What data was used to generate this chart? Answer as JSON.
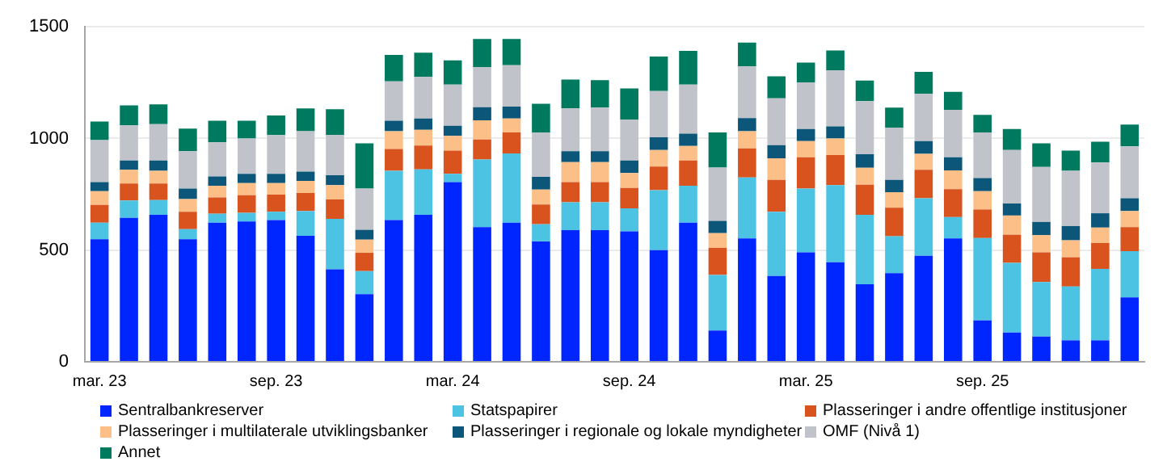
{
  "chart_data": {
    "type": "bar",
    "stacked": true,
    "grid": "y",
    "legend": "bottom",
    "categories": [
      "mar. 23",
      null,
      null,
      null,
      null,
      null,
      "sep. 23",
      null,
      null,
      null,
      null,
      null,
      "mar. 24",
      null,
      null,
      null,
      null,
      null,
      "sep. 24",
      null,
      null,
      null,
      null,
      null,
      "mar. 25",
      null,
      null,
      null,
      null,
      null,
      "sep. 25",
      null,
      null,
      null,
      null,
      null
    ],
    "ylim": [
      0,
      1500
    ],
    "yticks": [
      0,
      500,
      1000,
      1500
    ],
    "series": [
      {
        "name": "Sentralbankreserver",
        "color": "#0026ff",
        "values": [
          549,
          645,
          658,
          549,
          623,
          628,
          635,
          564,
          414,
          303,
          635,
          658,
          805,
          603,
          623,
          539,
          589,
          589,
          584,
          500,
          623,
          140,
          552,
          384,
          490,
          446,
          347,
          397,
          475,
          552,
          185,
          131,
          113,
          96,
          96,
          288
        ]
      },
      {
        "name": "Statspapirer",
        "color": "#4dc3e3",
        "values": [
          74,
          77,
          66,
          45,
          40,
          39,
          37,
          111,
          226,
          103,
          220,
          204,
          37,
          303,
          310,
          77,
          125,
          125,
          103,
          268,
          165,
          249,
          273,
          288,
          286,
          345,
          311,
          165,
          257,
          96,
          369,
          312,
          244,
          241,
          320,
          207
        ]
      },
      {
        "name": "Plasseringer i andre offentlige institusjoner",
        "color": "#d9531e",
        "values": [
          79,
          76,
          74,
          78,
          73,
          79,
          77,
          81,
          87,
          82,
          98,
          106,
          104,
          89,
          94,
          88,
          91,
          91,
          91,
          106,
          113,
          121,
          131,
          143,
          140,
          135,
          135,
          128,
          128,
          125,
          128,
          126,
          133,
          131,
          116,
          108
        ]
      },
      {
        "name": "Plasseringer i multilaterale utviklingsbanker",
        "color": "#fbbf87",
        "values": [
          62,
          62,
          57,
          57,
          52,
          54,
          51,
          54,
          64,
          59,
          79,
          71,
          66,
          86,
          62,
          67,
          89,
          89,
          67,
          74,
          65,
          66,
          76,
          96,
          72,
          74,
          76,
          69,
          71,
          84,
          82,
          86,
          77,
          76,
          69,
          72
        ]
      },
      {
        "name": "Plasseringer i regionale og lokale myndigheter",
        "color": "#0c5679",
        "values": [
          41,
          41,
          46,
          47,
          42,
          42,
          42,
          42,
          44,
          44,
          47,
          50,
          45,
          59,
          54,
          57,
          49,
          49,
          56,
          57,
          56,
          55,
          59,
          59,
          54,
          54,
          60,
          56,
          57,
          59,
          59,
          54,
          59,
          64,
          64,
          57
        ]
      },
      {
        "name": "OMF (Nivå 1)",
        "color": "#c0c3c9",
        "values": [
          188,
          158,
          163,
          167,
          153,
          158,
          173,
          180,
          180,
          185,
          177,
          187,
          184,
          180,
          185,
          199,
          192,
          195,
          183,
          207,
          219,
          239,
          232,
          210,
          209,
          251,
          238,
          234,
          212,
          212,
          204,
          239,
          246,
          247,
          227,
          233
        ]
      },
      {
        "name": "Annet",
        "color": "#007a5e",
        "values": [
          83,
          89,
          89,
          101,
          96,
          79,
          88,
          103,
          116,
          202,
          118,
          108,
          109,
          126,
          118,
          128,
          129,
          123,
          140,
          155,
          151,
          157,
          106,
          98,
          89,
          89,
          92,
          89,
          98,
          81,
          79,
          94,
          106,
          91,
          93,
          97
        ]
      }
    ]
  }
}
